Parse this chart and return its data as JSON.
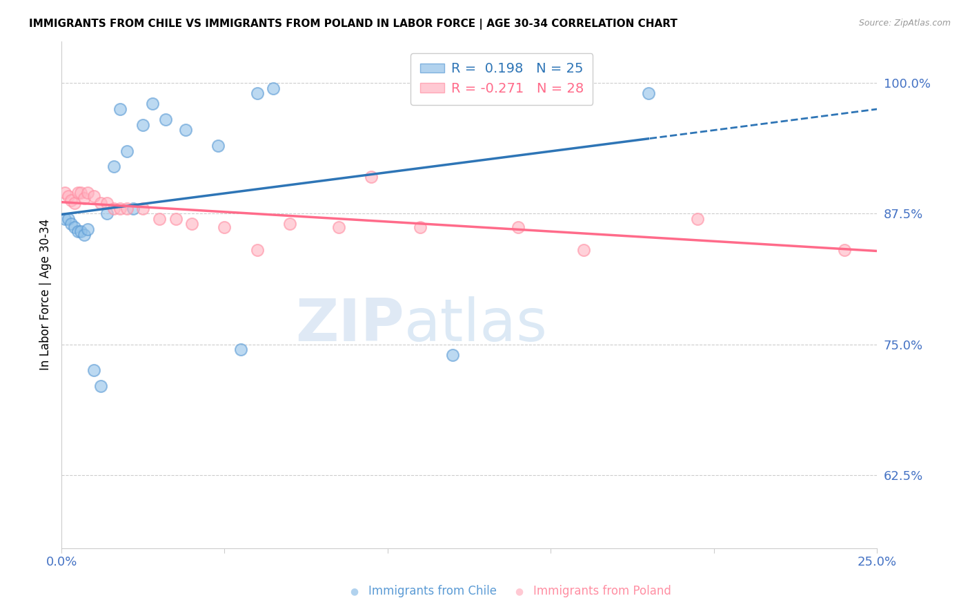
{
  "title": "IMMIGRANTS FROM CHILE VS IMMIGRANTS FROM POLAND IN LABOR FORCE | AGE 30-34 CORRELATION CHART",
  "source": "Source: ZipAtlas.com",
  "ylabel": "In Labor Force | Age 30-34",
  "xlim": [
    0.0,
    0.25
  ],
  "ylim": [
    0.555,
    1.04
  ],
  "xticks": [
    0.0,
    0.05,
    0.1,
    0.15,
    0.2,
    0.25
  ],
  "xticklabels": [
    "0.0%",
    "",
    "",
    "",
    "",
    "25.0%"
  ],
  "ytick_positions": [
    0.625,
    0.75,
    0.875,
    1.0
  ],
  "ytick_labels": [
    "62.5%",
    "75.0%",
    "87.5%",
    "100.0%"
  ],
  "chile_x": [
    0.001,
    0.002,
    0.003,
    0.004,
    0.005,
    0.006,
    0.007,
    0.008,
    0.01,
    0.012,
    0.014,
    0.016,
    0.018,
    0.02,
    0.022,
    0.025,
    0.028,
    0.032,
    0.038,
    0.048,
    0.055,
    0.06,
    0.065,
    0.12,
    0.18
  ],
  "chile_y": [
    0.87,
    0.87,
    0.865,
    0.862,
    0.858,
    0.858,
    0.855,
    0.86,
    0.725,
    0.71,
    0.875,
    0.92,
    0.975,
    0.935,
    0.88,
    0.96,
    0.98,
    0.965,
    0.955,
    0.94,
    0.745,
    0.99,
    0.995,
    0.74,
    0.99
  ],
  "poland_x": [
    0.001,
    0.002,
    0.003,
    0.004,
    0.005,
    0.006,
    0.007,
    0.008,
    0.01,
    0.012,
    0.014,
    0.016,
    0.018,
    0.02,
    0.025,
    0.03,
    0.035,
    0.04,
    0.05,
    0.06,
    0.07,
    0.085,
    0.095,
    0.11,
    0.14,
    0.16,
    0.195,
    0.24
  ],
  "poland_y": [
    0.895,
    0.892,
    0.888,
    0.885,
    0.895,
    0.895,
    0.89,
    0.895,
    0.892,
    0.885,
    0.885,
    0.88,
    0.88,
    0.88,
    0.88,
    0.87,
    0.87,
    0.865,
    0.862,
    0.84,
    0.865,
    0.862,
    0.91,
    0.862,
    0.862,
    0.84,
    0.87,
    0.84
  ],
  "chile_color": "#90C0E8",
  "poland_color": "#FFB3C1",
  "chile_line_color": "#2E75B6",
  "poland_line_color": "#FF6B8A",
  "R_chile": 0.198,
  "N_chile": 25,
  "R_poland": -0.271,
  "N_poland": 28,
  "watermark_zip": "ZIP",
  "watermark_atlas": "atlas",
  "title_color": "#000000",
  "axis_label_color": "#000000",
  "tick_color": "#4472C4",
  "grid_color": "#CCCCCC",
  "background_color": "#FFFFFF"
}
